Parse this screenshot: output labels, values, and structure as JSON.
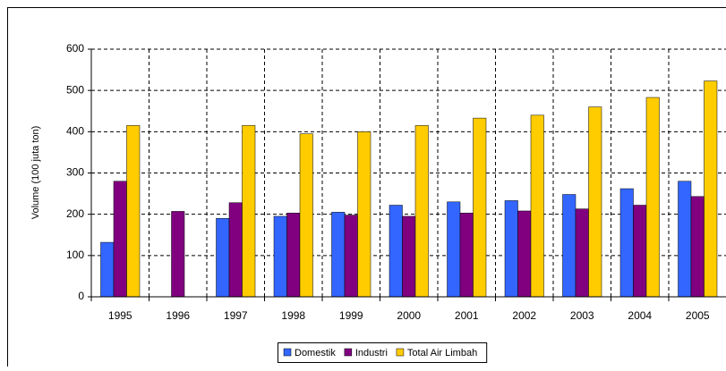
{
  "chart_data": {
    "type": "bar",
    "y_label": "Volume (100 juta ton)",
    "categories": [
      "1995",
      "1996",
      "1997",
      "1998",
      "1999",
      "2000",
      "2001",
      "2002",
      "2003",
      "2004",
      "2005"
    ],
    "series": [
      {
        "name": "Domestik",
        "color": "#3366ff",
        "values": [
          132,
          null,
          190,
          195,
          205,
          222,
          230,
          233,
          248,
          262,
          280
        ]
      },
      {
        "name": "Industri",
        "color": "#800080",
        "values": [
          280,
          207,
          228,
          203,
          198,
          195,
          203,
          208,
          213,
          222,
          243
        ]
      },
      {
        "name": "Total Air Limbah",
        "color": "#ffcc00",
        "values": [
          415,
          null,
          415,
          395,
          400,
          415,
          433,
          440,
          460,
          483,
          523
        ]
      }
    ],
    "ylim": [
      0,
      600
    ],
    "yticks": [
      0,
      100,
      200,
      300,
      400,
      500,
      600
    ],
    "grid": true
  }
}
